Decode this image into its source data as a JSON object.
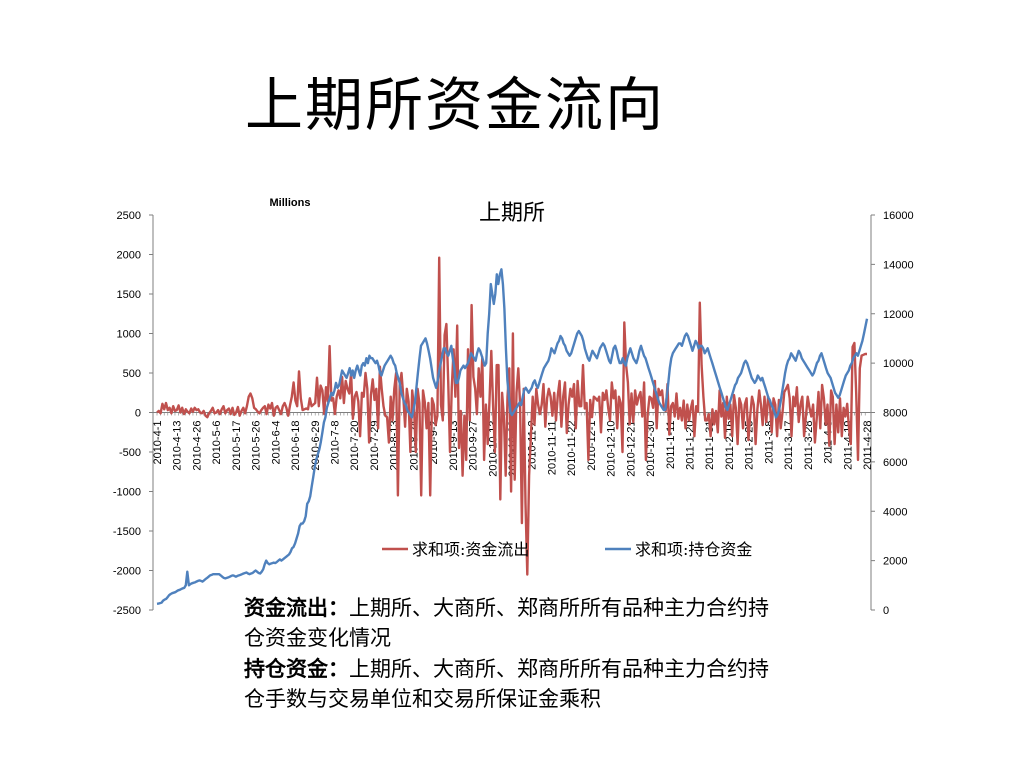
{
  "slide": {
    "title": "上期所资金流向",
    "captions": [
      {
        "term": "资金流出：",
        "text": "上期所、大商所、郑商所所有品种主力合约持仓资金变化情况"
      },
      {
        "term": "持仓资金：",
        "text": "上期所、大商所、郑商所所有品种主力合约持仓手数与交易单位和交易所保证金乘积"
      }
    ]
  },
  "chart_data": {
    "type": "line",
    "title": "上期所",
    "unit_label": "Millions",
    "legend_position": "bottom-right",
    "grid": false,
    "left_axis": {
      "min": -2500,
      "max": 2500,
      "ticks": [
        2500,
        2000,
        1500,
        1000,
        500,
        0,
        -500,
        -1000,
        -1500,
        -2000,
        -2500
      ]
    },
    "right_axis": {
      "min": 0,
      "max": 16000,
      "ticks": [
        16000,
        14000,
        12000,
        10000,
        8000,
        6000,
        4000,
        2000,
        0
      ]
    },
    "x_tick_labels": [
      "2010-4-1",
      "2010-4-13",
      "2010-4-26",
      "2010-5-6",
      "2010-5-17",
      "2010-5-26",
      "2010-6-4",
      "2010-6-18",
      "2010-6-29",
      "2010-7-8",
      "2010-7-20",
      "2010-7-29",
      "2010-8-13",
      "2010-8-24",
      "2010-9-2",
      "2010-9-13",
      "2010-9-27",
      "2010-10-13",
      "2010-10-22",
      "2010-11-2",
      "2010-11-11",
      "2010-11-22",
      "2010-12-1",
      "2010-12-10",
      "2010-12-21",
      "2010-12-30",
      "2011-1-11",
      "2011-1-20",
      "2011-1-31",
      "2011-2-16",
      "2011-2-25",
      "2011-3-8",
      "2011-3-17",
      "2011-3-28",
      "2011-4-8",
      "2011-4-19",
      "2011-4-28"
    ],
    "series": [
      {
        "name": "求和项:资金流出",
        "axis": "left",
        "color": "#c0504d",
        "values": [
          0,
          20,
          -10,
          110,
          40,
          120,
          30,
          60,
          -10,
          80,
          20,
          30,
          90,
          0,
          60,
          -20,
          40,
          10,
          -10,
          50,
          10,
          60,
          30,
          40,
          0,
          -10,
          20,
          -40,
          -60,
          -10,
          20,
          60,
          -10,
          0,
          30,
          -20,
          40,
          80,
          -10,
          30,
          50,
          -20,
          60,
          -30,
          0,
          70,
          -40,
          20,
          60,
          -10,
          80,
          200,
          240,
          180,
          60,
          40,
          10,
          -10,
          30,
          60,
          80,
          -20,
          100,
          50,
          120,
          -40,
          60,
          80,
          30,
          -20,
          80,
          120,
          60,
          -40,
          90,
          200,
          380,
          150,
          80,
          520,
          180,
          30,
          40,
          50,
          40,
          180,
          80,
          100,
          120,
          440,
          80,
          340,
          280,
          -20,
          320,
          140,
          840,
          150,
          180,
          -20,
          200,
          280,
          180,
          450,
          120,
          400,
          300,
          240,
          500,
          -80,
          200,
          260,
          140,
          -300,
          250,
          200,
          500,
          300,
          -380,
          220,
          420,
          160,
          300,
          -200,
          580,
          300,
          80,
          -40,
          -60,
          -380,
          200,
          -100,
          300,
          500,
          -1050,
          340,
          500,
          200,
          -180,
          300,
          140,
          -500,
          280,
          60,
          -500,
          300,
          120,
          -1050,
          280,
          130,
          -200,
          120,
          -1050,
          180,
          100,
          -160,
          -40,
          1960,
          100,
          -100,
          980,
          1120,
          400,
          -500,
          320,
          800,
          200,
          1100,
          -450,
          20,
          -800,
          -40,
          -600,
          800,
          -100,
          1360,
          450,
          300,
          -20,
          560,
          200,
          700,
          -600,
          100,
          -400,
          150,
          780,
          80,
          -500,
          600,
          600,
          -1100,
          250,
          -60,
          -800,
          200,
          560,
          -1000,
          1000,
          -850,
          250,
          560,
          100,
          -1400,
          300,
          -1150,
          -2050,
          -800,
          -300,
          200,
          -150,
          300,
          100,
          -20,
          100,
          360,
          -180,
          180,
          300,
          200,
          -40,
          250,
          -100,
          220,
          400,
          -180,
          200,
          380,
          -260,
          100,
          300,
          200,
          360,
          -200,
          400,
          80,
          80,
          600,
          50,
          120,
          -600,
          160,
          -60,
          200,
          180,
          150,
          200,
          -250,
          250,
          160,
          280,
          60,
          -100,
          380,
          180,
          280,
          -200,
          200,
          120,
          -500,
          1140,
          600,
          380,
          -150,
          240,
          -120,
          280,
          100,
          200,
          260,
          -50,
          380,
          -600,
          -20,
          200,
          180,
          60,
          400,
          -200,
          300,
          220,
          280,
          40,
          20,
          360,
          -280,
          80,
          120,
          -50,
          240,
          -80,
          60,
          -100,
          150,
          -200,
          100,
          -100,
          50,
          150,
          -300,
          80,
          10,
          1390,
          600,
          200,
          -100,
          -100,
          -20,
          -300,
          40,
          -150,
          20,
          -250,
          280,
          -50,
          120,
          -320,
          200,
          -80,
          100,
          -300,
          220,
          60,
          -400,
          180,
          100,
          -200,
          100,
          180,
          -350,
          -40,
          200,
          100,
          -400,
          40,
          280,
          100,
          -160,
          200,
          -120,
          200,
          100,
          -250,
          180,
          100,
          -300,
          160,
          -200,
          0,
          260,
          300,
          350,
          180,
          -300,
          200,
          80,
          320,
          -120,
          100,
          200,
          -300,
          -50,
          200,
          60,
          -50,
          100,
          -380,
          -80,
          260,
          -200,
          350,
          180,
          -150,
          100,
          -420,
          280,
          200,
          -400,
          100,
          -250,
          180,
          -300,
          60,
          -50,
          110,
          -200,
          -400,
          830,
          880,
          240,
          -600,
          560,
          720,
          730,
          740,
          740
        ]
      },
      {
        "name": "求和项:持仓资金",
        "axis": "right",
        "color": "#4f81bd",
        "values": [
          250,
          260,
          280,
          300,
          380,
          420,
          450,
          520,
          600,
          650,
          680,
          700,
          720,
          760,
          800,
          820,
          850,
          880,
          900,
          1000,
          1550,
          1000,
          1050,
          1080,
          1100,
          1120,
          1150,
          1180,
          1200,
          1180,
          1150,
          1200,
          1250,
          1300,
          1350,
          1400,
          1420,
          1450,
          1450,
          1450,
          1450,
          1450,
          1400,
          1350,
          1300,
          1280,
          1300,
          1320,
          1350,
          1380,
          1400,
          1380,
          1350,
          1380,
          1400,
          1420,
          1450,
          1480,
          1500,
          1520,
          1480,
          1450,
          1480,
          1500,
          1550,
          1600,
          1550,
          1500,
          1480,
          1550,
          1650,
          1850,
          2000,
          1900,
          1850,
          1880,
          1900,
          1920,
          1900,
          1950,
          2000,
          2050,
          2000,
          2050,
          2100,
          2150,
          2200,
          2250,
          2350,
          2500,
          2550,
          2700,
          2900,
          3100,
          3400,
          3500,
          3500,
          3600,
          3800,
          4300,
          4400,
          4600,
          5000,
          5400,
          5800,
          6100,
          6300,
          6500,
          6800,
          7200,
          7600,
          7800,
          8200,
          8400,
          8600,
          8800,
          8700,
          8900,
          9200,
          9000,
          9100,
          9400,
          9700,
          9600,
          9500,
          9400,
          9600,
          9800,
          9500,
          9700,
          9400,
          9700,
          9900,
          9700,
          9500,
          9900,
          10000,
          9900,
          10200,
          10000,
          10300,
          10200,
          10200,
          10100,
          10000,
          10100,
          9900,
          9600,
          9500,
          9700,
          9900,
          10000,
          10100,
          10200,
          10300,
          10200,
          10000,
          9900,
          9600,
          9400,
          9200,
          8800,
          8600,
          8400,
          8300,
          8100,
          8000,
          7900,
          7800,
          8100,
          8400,
          9000,
          9600,
          10200,
          10700,
          10800,
          10900,
          11000,
          10800,
          10500,
          10200,
          9800,
          9400,
          9200,
          9000,
          9300,
          9700,
          10000,
          10300,
          10600,
          10600,
          10400,
          10300,
          10500,
          10700,
          10200,
          9800,
          9200,
          9200,
          9400,
          9700,
          9800,
          9900,
          9800,
          9900,
          10000,
          10200,
          10400,
          10300,
          10200,
          10100,
          10400,
          10600,
          10500,
          10300,
          10100,
          9900,
          10000,
          11200,
          12000,
          13200,
          12800,
          12400,
          12800,
          13600,
          13200,
          13600,
          13800,
          13200,
          12200,
          10600,
          9300,
          8600,
          8000,
          7900,
          8000,
          8100,
          8200,
          8300,
          8400,
          8300,
          8600,
          8900,
          9000,
          8900,
          8800,
          8900,
          9000,
          9200,
          9300,
          9100,
          9000,
          9200,
          9400,
          9600,
          9800,
          9900,
          10000,
          10100,
          10300,
          10600,
          10500,
          10400,
          10600,
          10800,
          10900,
          11100,
          11000,
          10800,
          10700,
          10500,
          10400,
          10300,
          10400,
          10600,
          10800,
          11000,
          11200,
          11300,
          11200,
          11100,
          10900,
          10600,
          10400,
          10200,
          10100,
          10300,
          10500,
          10400,
          10300,
          10200,
          10400,
          10600,
          10700,
          10800,
          10700,
          10500,
          10300,
          10100,
          10000,
          10300,
          10600,
          10700,
          10500,
          10200,
          10000,
          10000,
          10200,
          10000,
          9900,
          10200,
          10400,
          10600,
          10400,
          10200,
          10100,
          10000,
          10200,
          10500,
          10700,
          10500,
          10300,
          10200,
          10000,
          9800,
          9600,
          9400,
          9200,
          9000,
          8800,
          8600,
          8400,
          8300,
          8200,
          8100,
          8100,
          8600,
          9200,
          9800,
          10200,
          10400,
          10500,
          10600,
          10700,
          10800,
          10800,
          10700,
          10900,
          11100,
          11200,
          11100,
          10900,
          10700,
          10500,
          10700,
          10900,
          10800,
          10600,
          10700,
          10700,
          10600,
          10400,
          10500,
          10600,
          10400,
          10200,
          10000,
          9800,
          9600,
          9400,
          9200,
          9000,
          8800,
          8600,
          8400,
          8200,
          8100,
          8300,
          8500,
          8700,
          8900,
          9100,
          9200,
          9400,
          9500,
          9600,
          9800,
          10000,
          10100,
          10000,
          9800,
          9600,
          9400,
          9300,
          9200,
          9300,
          9500,
          9400,
          9300,
          9400,
          9200,
          9000,
          8800,
          8600,
          8500,
          8300,
          8200,
          8000,
          7800,
          7900,
          8100,
          8400,
          8800,
          9200,
          9600,
          9900,
          10100,
          10200,
          10400,
          10300,
          10200,
          10100,
          10300,
          10500,
          10400,
          10200,
          10100,
          10000,
          9900,
          9800,
          9700,
          9600,
          9500,
          9600,
          9800,
          10000,
          10100,
          10300,
          10400,
          10200,
          10000,
          9800,
          9600,
          9500,
          9400,
          9200,
          9000,
          8800,
          8700,
          8600,
          8700,
          8900,
          9100,
          9300,
          9500,
          9600,
          9700,
          9900,
          10000,
          10200,
          10300,
          10400,
          10300,
          10500,
          10700,
          10900,
          11200,
          11500,
          11800
        ]
      }
    ]
  }
}
